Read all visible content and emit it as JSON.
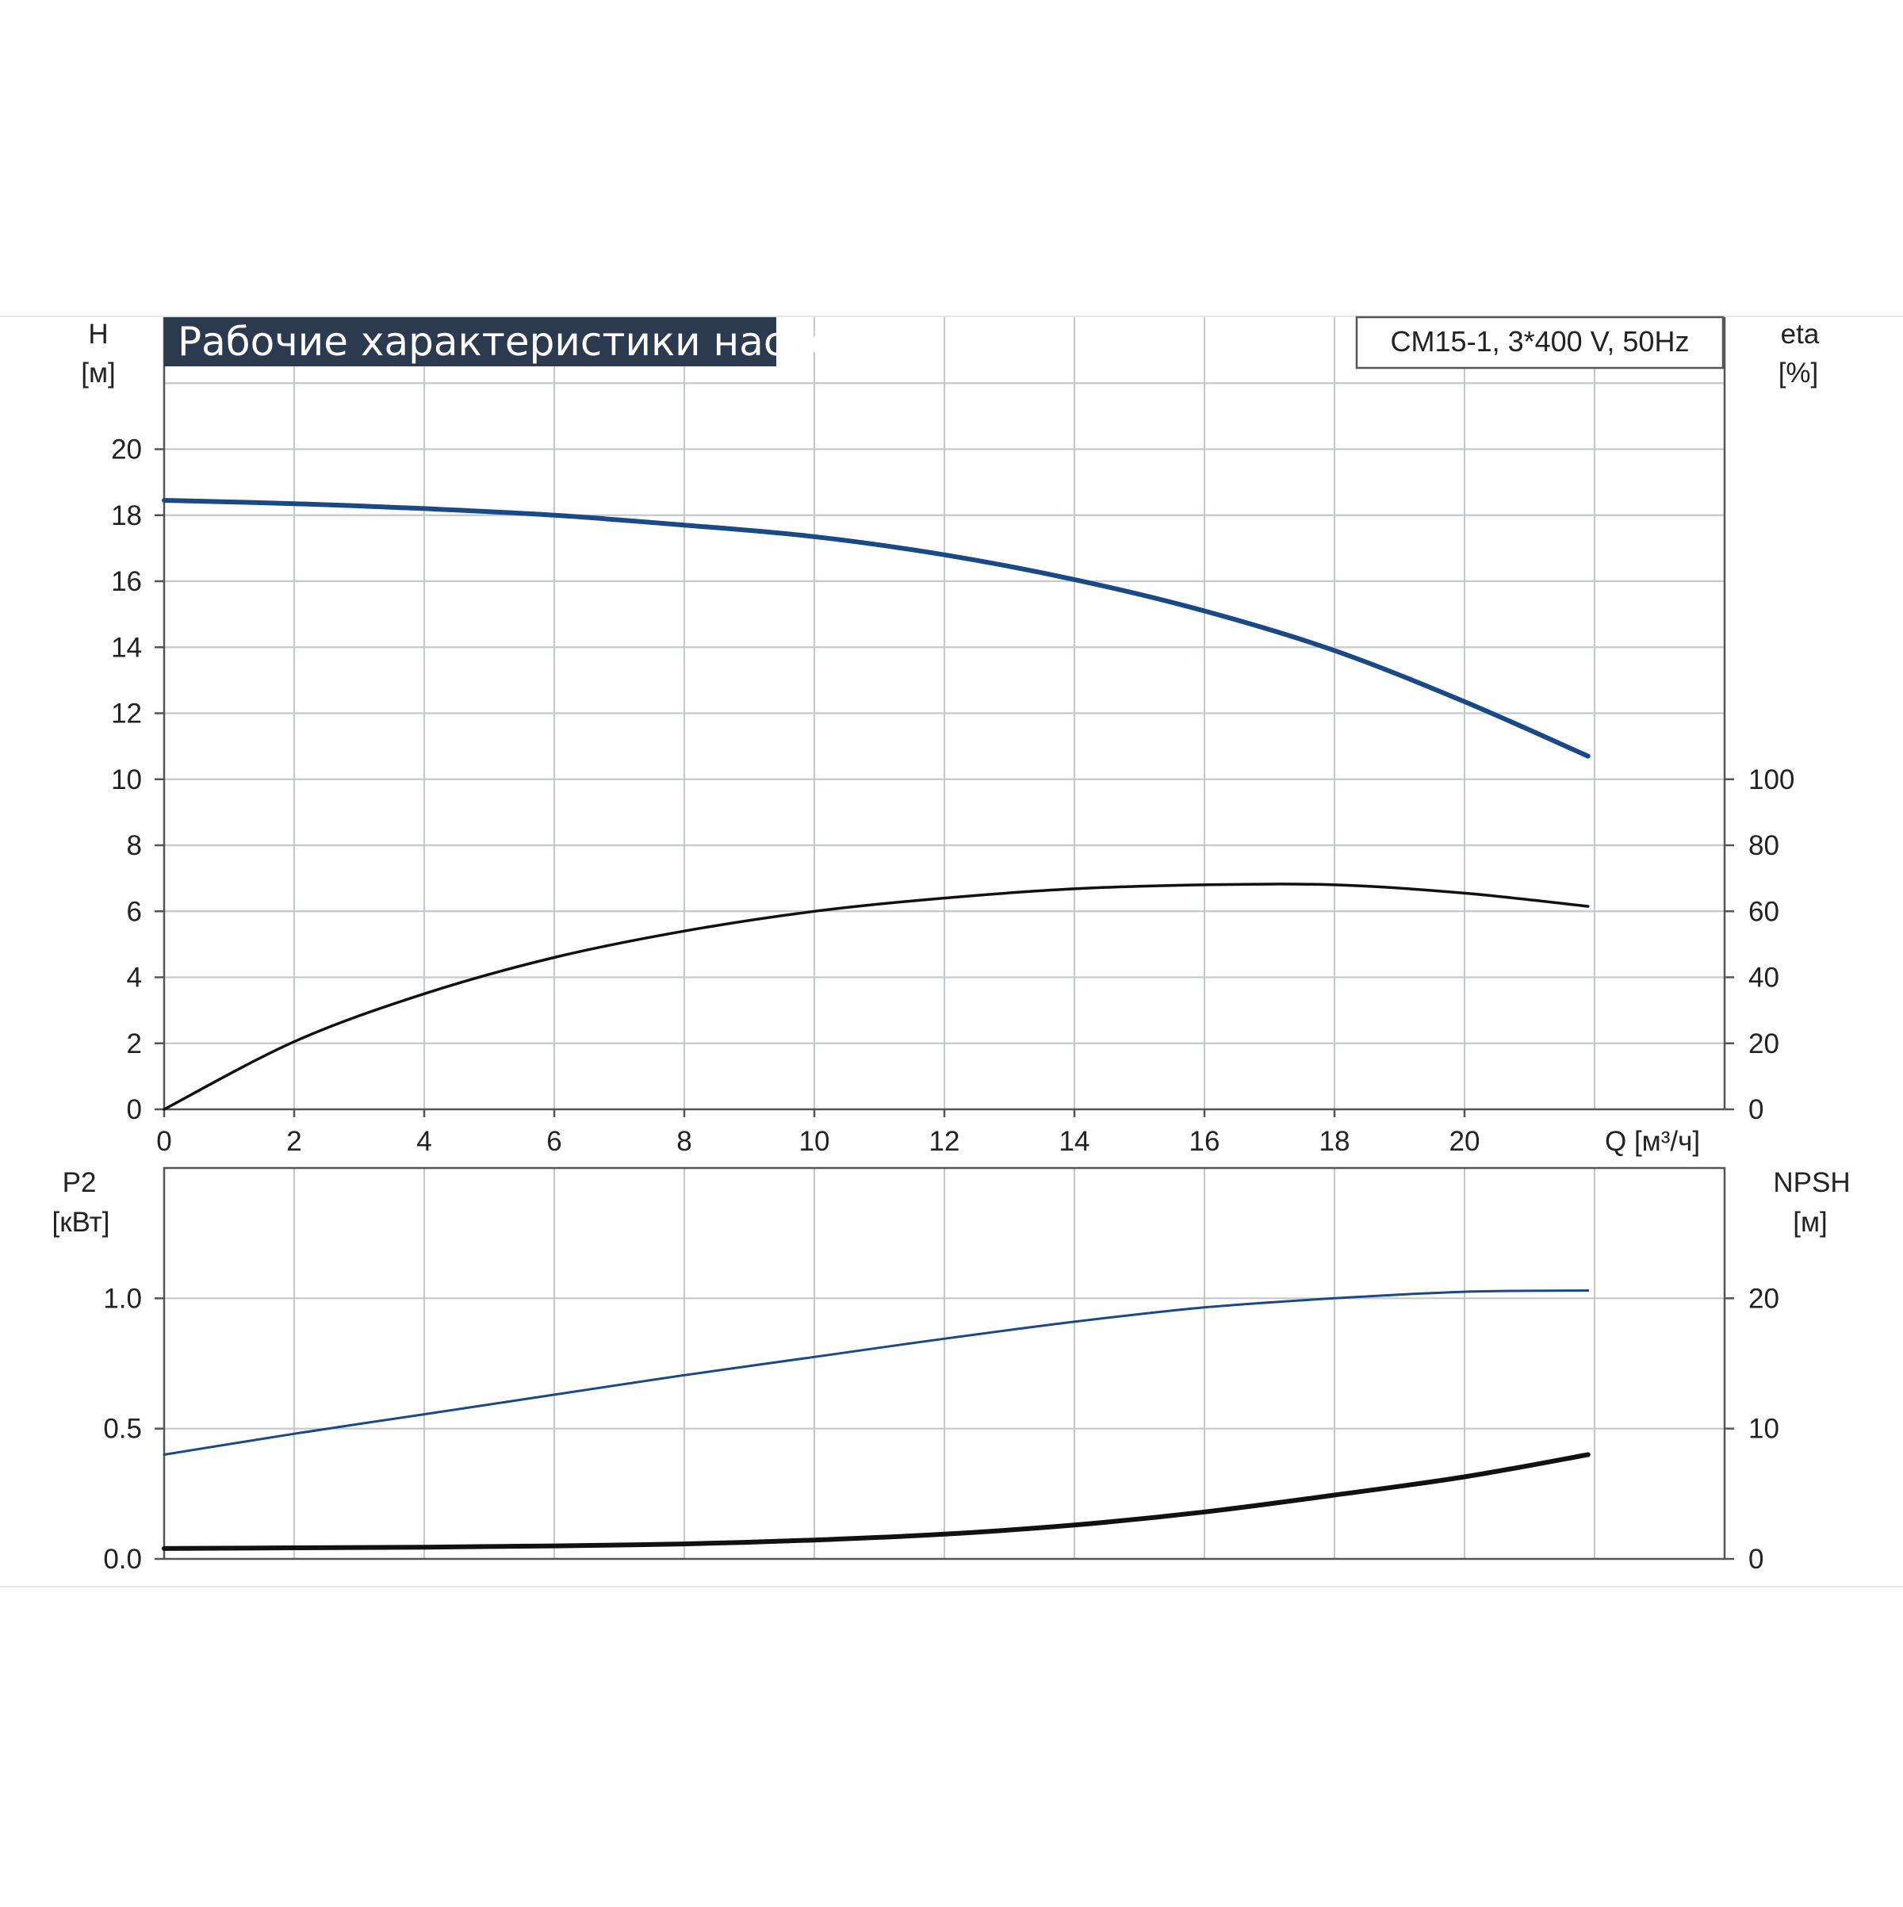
{
  "chart_data": [
    {
      "type": "line",
      "title": "Рабочие характеристики насоса",
      "subtitle": "CM15-1, 3*400 V, 50Hz",
      "ylabel": "H",
      "yunit": "[м]",
      "y2label": "eta",
      "y2unit": "[%]",
      "xlabel": "Q [м³/ч]",
      "xlim": [
        0,
        24
      ],
      "ylim": [
        0,
        24
      ],
      "y2lim": [
        0,
        100
      ],
      "xticks": [
        "0",
        "2",
        "4",
        "6",
        "8",
        "10",
        "12",
        "14",
        "16",
        "18",
        "20"
      ],
      "yticks": [
        "0",
        "2",
        "4",
        "6",
        "8",
        "10",
        "12",
        "14",
        "16",
        "18",
        "20"
      ],
      "y2ticks": [
        "0",
        "20",
        "40",
        "60",
        "80",
        "100"
      ],
      "grid": true,
      "series": [
        {
          "axis": "left",
          "color": "#1a4a86",
          "x": [
            0,
            2,
            4,
            6,
            8,
            10,
            12,
            14,
            16,
            18,
            20,
            21.9
          ],
          "values": [
            18.45,
            18.35,
            18.2,
            18.0,
            17.7,
            17.35,
            16.8,
            16.05,
            15.1,
            13.9,
            12.35,
            10.7
          ]
        },
        {
          "axis": "right",
          "color": "#111111",
          "x": [
            0,
            2,
            4,
            6,
            8,
            10,
            12,
            14,
            16,
            18,
            20,
            21.9
          ],
          "values": [
            0,
            20.5,
            35,
            46,
            54,
            60,
            64,
            66.8,
            68,
            68,
            65.5,
            61.5
          ]
        }
      ]
    },
    {
      "type": "line",
      "ylabel": "P2",
      "yunit": "[кВт]",
      "y2label": "NPSH",
      "y2unit": "[м]",
      "xlim": [
        0,
        24
      ],
      "ylim": [
        0,
        1.5
      ],
      "y2lim": [
        0,
        30
      ],
      "yticks": [
        "0.0",
        "0.5",
        "1.0"
      ],
      "y2ticks": [
        "0",
        "10",
        "20"
      ],
      "grid": true,
      "series": [
        {
          "axis": "left",
          "color": "#1a4a86",
          "x": [
            0,
            2,
            4,
            6,
            8,
            10,
            12,
            14,
            16,
            18,
            20,
            21.9
          ],
          "values": [
            0.4,
            0.48,
            0.555,
            0.63,
            0.705,
            0.775,
            0.845,
            0.91,
            0.965,
            1.0,
            1.025,
            1.03
          ]
        },
        {
          "axis": "right",
          "color": "#111111",
          "x": [
            0,
            2,
            4,
            5,
            6,
            8,
            10,
            12,
            14,
            16,
            18,
            20,
            21.9
          ],
          "values": [
            0.8,
            0.85,
            0.9,
            0.95,
            1.0,
            1.15,
            1.45,
            1.9,
            2.6,
            3.6,
            4.9,
            6.3,
            8.0
          ]
        }
      ]
    }
  ]
}
